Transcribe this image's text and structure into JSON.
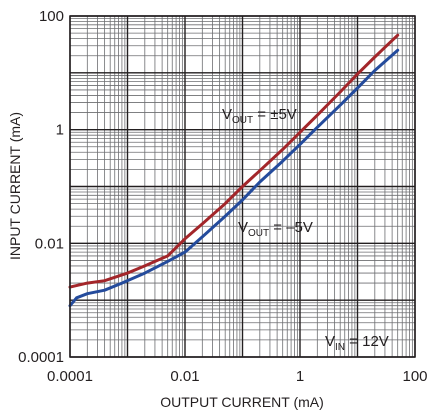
{
  "chart_data": {
    "type": "line",
    "title": "",
    "xlabel": "OUTPUT CURRENT (mA)",
    "ylabel": "INPUT CURRENT (mA)",
    "x_scale": "log",
    "y_scale": "log",
    "xlim": [
      0.0001,
      100
    ],
    "ylim": [
      0.0001,
      100
    ],
    "grid": true,
    "x_tick_labels": [
      "0.0001",
      "0.01",
      "1",
      "100"
    ],
    "y_tick_labels": [
      "100",
      "1",
      "0.01",
      "0.0001"
    ],
    "series": [
      {
        "name": "",
        "color": "#a3262a",
        "label_main": "V",
        "label_sub": "OUT",
        "label_rest": " = ±5V",
        "x": [
          0.0001,
          0.0002,
          0.0004,
          0.001,
          0.002,
          0.005,
          0.01,
          0.02,
          0.05,
          0.1,
          0.2,
          0.5,
          1,
          2,
          5,
          10,
          20,
          50
        ],
        "y": [
          0.0017,
          0.002,
          0.0022,
          0.003,
          0.004,
          0.006,
          0.012,
          0.022,
          0.05,
          0.1,
          0.19,
          0.45,
          0.9,
          1.8,
          4.6,
          9.5,
          19,
          46
        ]
      },
      {
        "name": "",
        "color": "#244b9c",
        "label_main": "V",
        "label_sub": "OUT",
        "label_rest": " = –5V",
        "x": [
          0.0001,
          0.00013,
          0.0002,
          0.0004,
          0.0008,
          0.002,
          0.005,
          0.01,
          0.02,
          0.05,
          0.1,
          0.2,
          0.5,
          1,
          2,
          5,
          10,
          20,
          50
        ],
        "y": [
          0.0008,
          0.0011,
          0.0013,
          0.0015,
          0.002,
          0.003,
          0.0048,
          0.007,
          0.013,
          0.03,
          0.058,
          0.12,
          0.28,
          0.55,
          1.1,
          2.7,
          5.4,
          11,
          25
        ]
      }
    ],
    "annotation": {
      "main": "V",
      "sub": "IN",
      "rest": " = 12V"
    }
  }
}
